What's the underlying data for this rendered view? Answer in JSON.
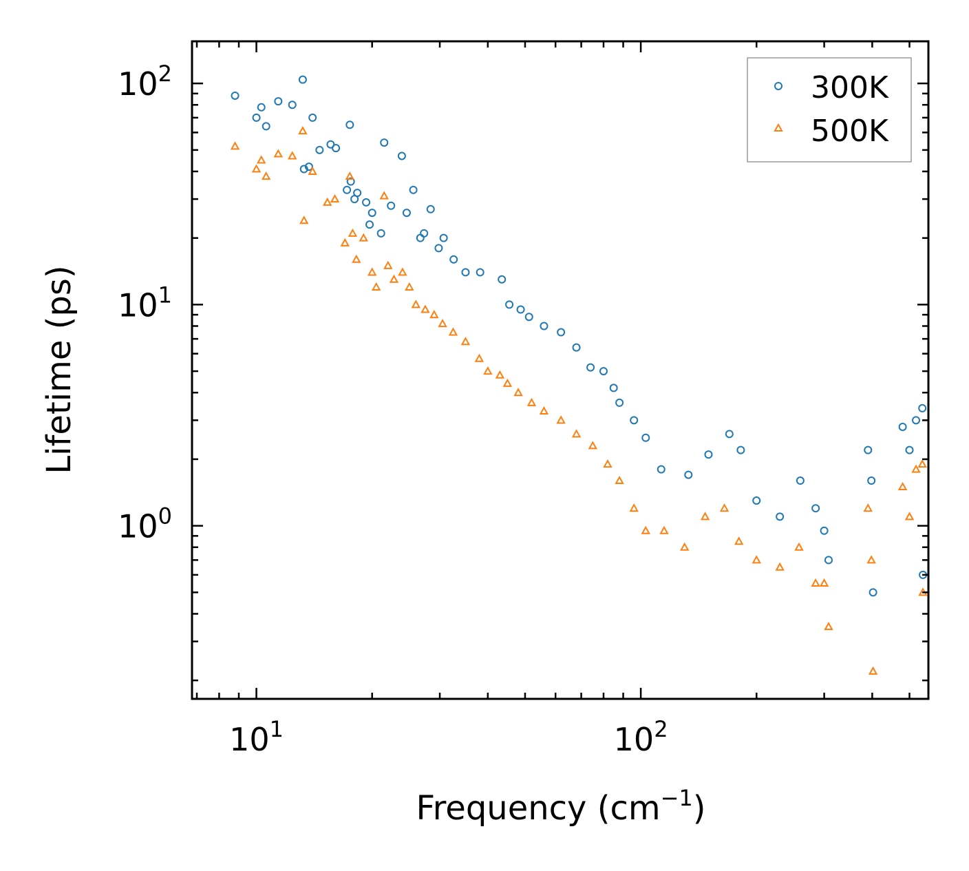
{
  "chart_data": {
    "type": "scatter",
    "title": "",
    "xlabel": "Frequency (cm",
    "xlabel_sup": "−1",
    "xlabel_end": ")",
    "ylabel": "Lifetime (ps)",
    "xscale": "log",
    "yscale": "log",
    "xlim": [
      6.8,
      560
    ],
    "ylim": [
      0.165,
      155
    ],
    "x_ticks": [
      {
        "value": 10,
        "base": "10",
        "exp": "1"
      },
      {
        "value": 100,
        "base": "10",
        "exp": "2"
      }
    ],
    "y_ticks": [
      {
        "value": 1,
        "base": "10",
        "exp": "0"
      },
      {
        "value": 10,
        "base": "10",
        "exp": "1"
      },
      {
        "value": 100,
        "base": "10",
        "exp": "2"
      }
    ],
    "legend": {
      "position": "top-right"
    },
    "series": [
      {
        "name": "300K",
        "marker": "circle",
        "color": "#1f77b4",
        "points": [
          [
            8.8,
            88
          ],
          [
            10.0,
            70
          ],
          [
            10.3,
            78
          ],
          [
            10.6,
            64
          ],
          [
            11.4,
            83
          ],
          [
            12.4,
            80
          ],
          [
            13.2,
            104
          ],
          [
            13.3,
            41
          ],
          [
            13.7,
            42
          ],
          [
            14.0,
            70
          ],
          [
            14.6,
            50
          ],
          [
            15.6,
            53
          ],
          [
            16.1,
            51
          ],
          [
            17.2,
            33
          ],
          [
            17.5,
            65
          ],
          [
            17.6,
            36
          ],
          [
            18.0,
            30
          ],
          [
            18.3,
            32
          ],
          [
            19.3,
            29
          ],
          [
            19.7,
            23
          ],
          [
            20.0,
            26
          ],
          [
            21.1,
            21
          ],
          [
            21.5,
            54
          ],
          [
            22.4,
            28
          ],
          [
            23.9,
            47
          ],
          [
            24.6,
            26
          ],
          [
            25.6,
            33
          ],
          [
            26.7,
            20
          ],
          [
            27.3,
            21
          ],
          [
            28.4,
            27
          ],
          [
            29.8,
            18
          ],
          [
            30.7,
            20
          ],
          [
            32.6,
            16
          ],
          [
            35.0,
            14
          ],
          [
            38.2,
            14
          ],
          [
            43.5,
            13
          ],
          [
            45.5,
            10
          ],
          [
            48.7,
            9.5
          ],
          [
            51.2,
            8.8
          ],
          [
            56.0,
            8.0
          ],
          [
            62.0,
            7.5
          ],
          [
            68.0,
            6.4
          ],
          [
            74.0,
            5.2
          ],
          [
            80.0,
            5.0
          ],
          [
            85.0,
            4.2
          ],
          [
            88.0,
            3.6
          ],
          [
            96.0,
            3.0
          ],
          [
            103.0,
            2.5
          ],
          [
            113.0,
            1.8
          ],
          [
            133.0,
            1.7
          ],
          [
            150.0,
            2.1
          ],
          [
            170.0,
            2.6
          ],
          [
            182.0,
            2.2
          ],
          [
            200.0,
            1.3
          ],
          [
            230.0,
            1.1
          ],
          [
            260.0,
            1.6
          ],
          [
            285.0,
            1.2
          ],
          [
            300.0,
            0.95
          ],
          [
            308.0,
            0.7
          ],
          [
            390.0,
            2.2
          ],
          [
            398.0,
            1.6
          ],
          [
            402.0,
            0.5
          ],
          [
            480.0,
            2.8
          ],
          [
            500.0,
            2.2
          ],
          [
            520.0,
            3.0
          ],
          [
            540.0,
            3.4
          ],
          [
            542.0,
            0.6
          ]
        ]
      },
      {
        "name": "500K",
        "marker": "triangle",
        "color": "#ff7f0e",
        "points": [
          [
            8.8,
            52
          ],
          [
            10.0,
            41
          ],
          [
            10.3,
            45
          ],
          [
            10.6,
            38
          ],
          [
            11.4,
            48
          ],
          [
            12.4,
            47
          ],
          [
            13.2,
            61
          ],
          [
            13.3,
            24
          ],
          [
            14.0,
            40
          ],
          [
            15.3,
            29
          ],
          [
            16.0,
            30
          ],
          [
            17.0,
            19
          ],
          [
            17.5,
            38
          ],
          [
            17.8,
            21
          ],
          [
            18.2,
            16
          ],
          [
            19.0,
            20
          ],
          [
            20.0,
            14
          ],
          [
            20.5,
            12
          ],
          [
            21.5,
            31
          ],
          [
            22.0,
            15
          ],
          [
            22.8,
            13
          ],
          [
            24.0,
            14
          ],
          [
            25.0,
            12
          ],
          [
            26.0,
            10
          ],
          [
            27.5,
            9.5
          ],
          [
            29.0,
            9.0
          ],
          [
            30.5,
            8.2
          ],
          [
            32.5,
            7.5
          ],
          [
            35.0,
            6.8
          ],
          [
            38.0,
            5.7
          ],
          [
            40.0,
            5.0
          ],
          [
            43.0,
            4.8
          ],
          [
            45.0,
            4.4
          ],
          [
            48.0,
            4.0
          ],
          [
            52.0,
            3.6
          ],
          [
            56.0,
            3.3
          ],
          [
            62.0,
            3.0
          ],
          [
            68.0,
            2.6
          ],
          [
            75.0,
            2.3
          ],
          [
            82.0,
            1.9
          ],
          [
            88.0,
            1.6
          ],
          [
            96.0,
            1.2
          ],
          [
            103.0,
            0.95
          ],
          [
            115.0,
            0.95
          ],
          [
            130.0,
            0.8
          ],
          [
            147.0,
            1.1
          ],
          [
            165.0,
            1.2
          ],
          [
            180.0,
            0.85
          ],
          [
            200.0,
            0.7
          ],
          [
            230.0,
            0.65
          ],
          [
            258.0,
            0.8
          ],
          [
            285.0,
            0.55
          ],
          [
            300.0,
            0.55
          ],
          [
            308.0,
            0.35
          ],
          [
            390.0,
            1.2
          ],
          [
            398.0,
            0.7
          ],
          [
            402.0,
            0.22
          ],
          [
            480.0,
            1.5
          ],
          [
            500.0,
            1.1
          ],
          [
            520.0,
            1.8
          ],
          [
            540.0,
            1.9
          ],
          [
            542.0,
            0.5
          ]
        ]
      }
    ]
  }
}
